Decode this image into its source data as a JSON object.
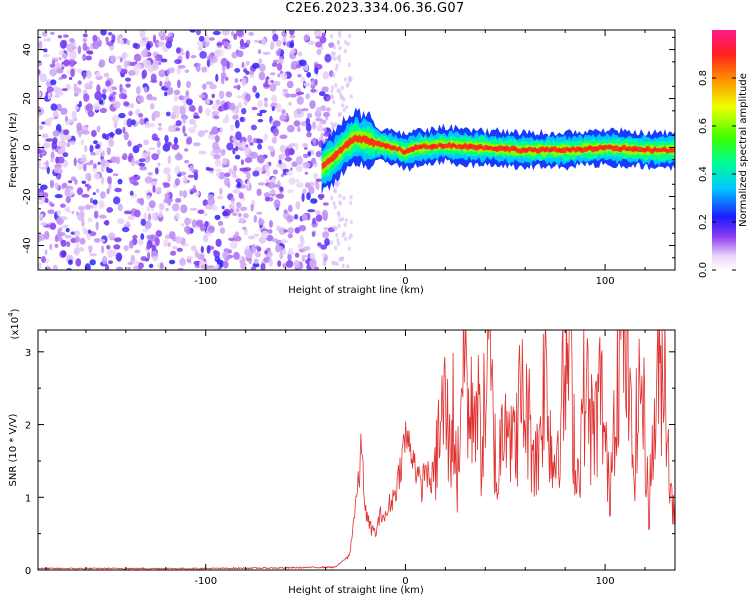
{
  "title": "C2E6.2023.334.06.36.G07",
  "chart_data": [
    {
      "type": "heatmap",
      "xlabel": "Height of straight line (km)",
      "ylabel": "Frequency (Hz)",
      "xlim": [
        -184,
        135
      ],
      "ylim": [
        -50,
        48
      ],
      "xticks": [
        -100,
        0,
        100
      ],
      "yticks": [
        -40,
        -20,
        0,
        20,
        40
      ],
      "colorbar": {
        "label": "Normalized spectral amplitude",
        "range": [
          0,
          1
        ],
        "ticks": [
          0.0,
          0.2,
          0.4,
          0.6,
          0.8
        ]
      },
      "noise_region_x": [
        -184,
        -37
      ],
      "signal_band": [
        {
          "x": -42,
          "freq": -8
        },
        {
          "x": -37,
          "freq": -5
        },
        {
          "x": -30,
          "freq": 1
        },
        {
          "x": -25,
          "freq": 4
        },
        {
          "x": -20,
          "freq": 3
        },
        {
          "x": -12,
          "freq": 1
        },
        {
          "x": -5,
          "freq": 0
        },
        {
          "x": 0,
          "freq": -2
        },
        {
          "x": 5,
          "freq": 0
        },
        {
          "x": 20,
          "freq": 1
        },
        {
          "x": 40,
          "freq": 0
        },
        {
          "x": 60,
          "freq": -1
        },
        {
          "x": 80,
          "freq": -1
        },
        {
          "x": 100,
          "freq": 0
        },
        {
          "x": 120,
          "freq": -1
        },
        {
          "x": 135,
          "freq": -1
        }
      ]
    },
    {
      "type": "line",
      "xlabel": "Height of straight line (km)",
      "ylabel": "SNR (10 * V/V)",
      "y_multiplier": "(x10",
      "y_multiplier_exp": "4",
      "xlim": [
        -184,
        135
      ],
      "ylim": [
        0,
        3.3
      ],
      "xticks": [
        -100,
        0,
        100
      ],
      "yticks": [
        0,
        1,
        2,
        3
      ],
      "color": "#e03030",
      "series": [
        {
          "x": [
            -184,
            -150,
            -100,
            -60,
            -35,
            -28,
            -25,
            -23,
            -22,
            -20,
            -18,
            -15,
            -12,
            -10,
            -8,
            -6,
            -4,
            -2,
            0,
            2,
            4,
            6,
            8,
            10,
            12,
            14,
            16,
            18,
            20,
            22,
            24,
            26,
            28,
            30,
            32,
            35,
            38,
            42,
            46,
            50,
            54,
            58,
            62,
            66,
            70,
            74,
            78,
            82,
            86,
            90,
            94,
            98,
            102,
            106,
            110,
            114,
            118,
            122,
            126,
            130,
            133,
            135
          ],
          "y": [
            0.02,
            0.02,
            0.02,
            0.03,
            0.04,
            0.2,
            0.9,
            1.3,
            1.75,
            0.8,
            0.6,
            0.5,
            0.8,
            0.7,
            0.9,
            1.0,
            1.2,
            1.5,
            1.85,
            1.7,
            1.6,
            1.3,
            1.1,
            1.45,
            1.2,
            1.3,
            1.7,
            2.0,
            2.35,
            1.6,
            2.2,
            1.2,
            2.6,
            3.1,
            1.9,
            2.5,
            1.7,
            2.9,
            1.1,
            2.6,
            1.6,
            2.4,
            2.0,
            1.5,
            2.8,
            1.4,
            2.2,
            3.0,
            1.2,
            2.6,
            1.8,
            2.5,
            1.0,
            2.9,
            3.3,
            1.4,
            2.7,
            0.9,
            2.5,
            2.9,
            0.9,
            1.0
          ]
        }
      ]
    }
  ]
}
